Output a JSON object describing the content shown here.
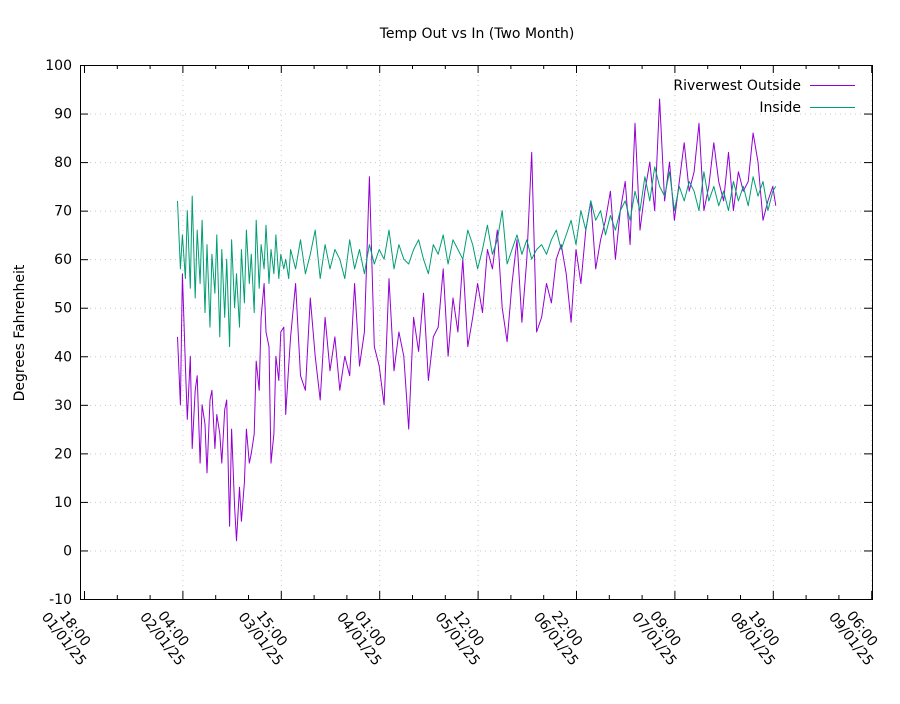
{
  "chart_data": {
    "type": "line",
    "title": "Temp Out vs In (Two Month)",
    "ylabel": "Degrees Fahrenheit",
    "xlabel": "",
    "ylim": [
      -10,
      100
    ],
    "yticks": [
      -10,
      0,
      10,
      20,
      30,
      40,
      50,
      60,
      70,
      80,
      90,
      100
    ],
    "grid": true,
    "legend_position": "top-right",
    "xticks": [
      {
        "time": "18:00",
        "date": "01/01/25"
      },
      {
        "time": "04:00",
        "date": "02/01/25"
      },
      {
        "time": "15:00",
        "date": "03/01/25"
      },
      {
        "time": "01:00",
        "date": "04/01/25"
      },
      {
        "time": "12:00",
        "date": "05/01/25"
      },
      {
        "time": "22:00",
        "date": "06/01/25"
      },
      {
        "time": "09:00",
        "date": "07/01/25"
      },
      {
        "time": "19:00",
        "date": "08/01/25"
      },
      {
        "time": "06:00",
        "date": "09/01/25"
      }
    ],
    "series": [
      {
        "name": "Riverwest Outside",
        "color": "#9400d3",
        "x_tick_index": [
          0.95,
          0.98,
          1.0,
          1.03,
          1.05,
          1.08,
          1.1,
          1.13,
          1.15,
          1.18,
          1.2,
          1.23,
          1.25,
          1.28,
          1.3,
          1.33,
          1.35,
          1.38,
          1.4,
          1.43,
          1.45,
          1.48,
          1.5,
          1.53,
          1.55,
          1.58,
          1.6,
          1.63,
          1.65,
          1.68,
          1.7,
          1.73,
          1.75,
          1.78,
          1.8,
          1.83,
          1.85,
          1.88,
          1.9,
          1.93,
          1.95,
          1.98,
          2.0,
          2.03,
          2.05,
          2.08,
          2.1,
          2.15,
          2.2,
          2.25,
          2.3,
          2.35,
          2.4,
          2.45,
          2.5,
          2.55,
          2.6,
          2.65,
          2.7,
          2.75,
          2.8,
          2.85,
          2.9,
          2.95,
          3.0,
          3.05,
          3.1,
          3.15,
          3.2,
          3.25,
          3.3,
          3.35,
          3.4,
          3.45,
          3.5,
          3.55,
          3.6,
          3.65,
          3.7,
          3.75,
          3.8,
          3.85,
          3.9,
          3.95,
          4.0,
          4.05,
          4.1,
          4.15,
          4.2,
          4.25,
          4.3,
          4.35,
          4.4,
          4.45,
          4.5,
          4.55,
          4.6,
          4.65,
          4.7,
          4.75,
          4.8,
          4.85,
          4.9,
          4.95,
          5.0,
          5.05,
          5.1,
          5.15,
          5.2,
          5.25,
          5.3,
          5.35,
          5.4,
          5.45,
          5.5,
          5.55,
          5.6,
          5.65,
          5.7,
          5.75,
          5.8,
          5.85,
          5.9,
          5.95,
          6.0,
          6.05,
          6.1,
          6.15,
          6.2,
          6.25,
          6.3,
          6.35,
          6.4,
          6.45,
          6.5,
          6.55,
          6.6,
          6.65,
          6.7,
          6.75,
          6.8,
          6.85,
          6.9,
          6.95,
          7.0,
          7.03
        ],
        "values": [
          44,
          30,
          57,
          38,
          27,
          40,
          21,
          33,
          36,
          18,
          30,
          26,
          16,
          31,
          33,
          21,
          28,
          24,
          18,
          29,
          31,
          5,
          25,
          9,
          2,
          13,
          6,
          14,
          25,
          18,
          20,
          24,
          39,
          33,
          48,
          55,
          45,
          42,
          18,
          24,
          40,
          35,
          45,
          46,
          28,
          38,
          44,
          55,
          36,
          33,
          52,
          40,
          31,
          48,
          37,
          44,
          33,
          40,
          36,
          55,
          38,
          45,
          77,
          42,
          38,
          30,
          56,
          37,
          45,
          40,
          25,
          48,
          41,
          53,
          35,
          44,
          46,
          58,
          40,
          52,
          45,
          60,
          42,
          48,
          55,
          49,
          62,
          58,
          66,
          50,
          43,
          55,
          64,
          47,
          60,
          82,
          45,
          48,
          55,
          51,
          60,
          63,
          57,
          47,
          62,
          55,
          66,
          72,
          58,
          64,
          68,
          74,
          60,
          70,
          76,
          63,
          88,
          66,
          74,
          80,
          70,
          93,
          72,
          80,
          68,
          76,
          84,
          74,
          78,
          88,
          70,
          75,
          84,
          76,
          72,
          82,
          70,
          78,
          74,
          76,
          86,
          80,
          68,
          72,
          75,
          71
        ]
      },
      {
        "name": "Inside",
        "color": "#009e73",
        "x_tick_index": [
          0.95,
          0.98,
          1.0,
          1.03,
          1.05,
          1.08,
          1.1,
          1.13,
          1.15,
          1.18,
          1.2,
          1.23,
          1.25,
          1.28,
          1.3,
          1.33,
          1.35,
          1.38,
          1.4,
          1.43,
          1.45,
          1.48,
          1.5,
          1.53,
          1.55,
          1.58,
          1.6,
          1.63,
          1.65,
          1.68,
          1.7,
          1.73,
          1.75,
          1.78,
          1.8,
          1.83,
          1.85,
          1.88,
          1.9,
          1.93,
          1.95,
          1.98,
          2.0,
          2.03,
          2.05,
          2.08,
          2.1,
          2.15,
          2.2,
          2.25,
          2.3,
          2.35,
          2.4,
          2.45,
          2.5,
          2.55,
          2.6,
          2.65,
          2.7,
          2.75,
          2.8,
          2.85,
          2.9,
          2.95,
          3.0,
          3.05,
          3.1,
          3.15,
          3.2,
          3.25,
          3.3,
          3.35,
          3.4,
          3.45,
          3.5,
          3.55,
          3.6,
          3.65,
          3.7,
          3.75,
          3.8,
          3.85,
          3.9,
          3.95,
          4.0,
          4.05,
          4.1,
          4.15,
          4.2,
          4.25,
          4.3,
          4.35,
          4.4,
          4.45,
          4.5,
          4.55,
          4.6,
          4.65,
          4.7,
          4.75,
          4.8,
          4.85,
          4.9,
          4.95,
          5.0,
          5.05,
          5.1,
          5.15,
          5.2,
          5.25,
          5.3,
          5.35,
          5.4,
          5.45,
          5.5,
          5.55,
          5.6,
          5.65,
          5.7,
          5.75,
          5.8,
          5.85,
          5.9,
          5.95,
          6.0,
          6.05,
          6.1,
          6.15,
          6.2,
          6.25,
          6.3,
          6.35,
          6.4,
          6.45,
          6.5,
          6.55,
          6.6,
          6.65,
          6.7,
          6.75,
          6.8,
          6.85,
          6.9,
          6.95,
          7.0,
          7.03
        ],
        "values": [
          72,
          58,
          65,
          56,
          70,
          54,
          73,
          52,
          66,
          55,
          68,
          49,
          63,
          46,
          61,
          53,
          65,
          44,
          62,
          48,
          60,
          42,
          64,
          50,
          57,
          46,
          62,
          51,
          66,
          55,
          61,
          49,
          68,
          54,
          63,
          58,
          67,
          55,
          62,
          57,
          65,
          56,
          61,
          58,
          60,
          56,
          62,
          58,
          64,
          57,
          61,
          66,
          56,
          63,
          58,
          62,
          60,
          56,
          64,
          58,
          62,
          57,
          63,
          59,
          62,
          60,
          66,
          58,
          63,
          60,
          59,
          62,
          64,
          60,
          57,
          63,
          61,
          65,
          59,
          64,
          62,
          60,
          66,
          63,
          58,
          62,
          67,
          61,
          64,
          70,
          59,
          62,
          65,
          61,
          64,
          60,
          62,
          63,
          61,
          64,
          66,
          62,
          65,
          68,
          63,
          70,
          66,
          72,
          68,
          70,
          65,
          69,
          66,
          70,
          72,
          68,
          74,
          70,
          77,
          72,
          79,
          75,
          73,
          78,
          70,
          75,
          72,
          76,
          74,
          70,
          78,
          72,
          75,
          71,
          74,
          70,
          76,
          72,
          75,
          71,
          77,
          73,
          76,
          70,
          74,
          75
        ]
      }
    ]
  }
}
